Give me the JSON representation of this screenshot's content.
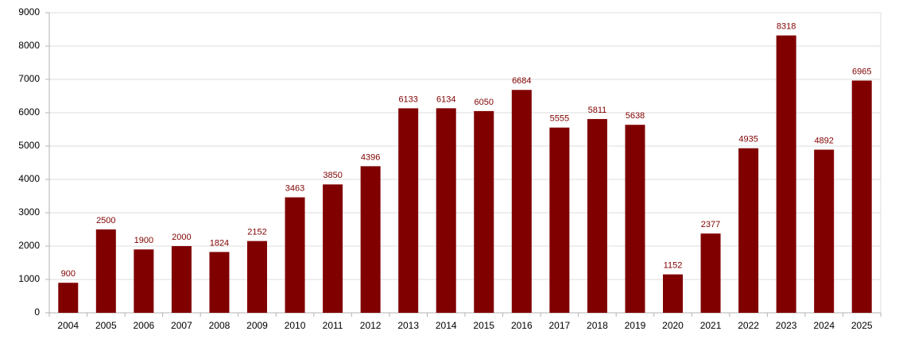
{
  "chart_data": {
    "type": "bar",
    "categories": [
      "2004",
      "2005",
      "2006",
      "2007",
      "2008",
      "2009",
      "2010",
      "2011",
      "2012",
      "2013",
      "2014",
      "2015",
      "2016",
      "2017",
      "2018",
      "2019",
      "2020",
      "2021",
      "2022",
      "2023",
      "2024",
      "2025"
    ],
    "values": [
      900,
      2500,
      1900,
      2000,
      1824,
      2152,
      3463,
      3850,
      4396,
      6133,
      6134,
      6050,
      6684,
      5555,
      5811,
      5638,
      1152,
      2377,
      4935,
      8318,
      4892,
      6965
    ],
    "color": "#800000",
    "ylim": [
      0,
      9000
    ],
    "yticks": [
      0,
      1000,
      2000,
      3000,
      4000,
      5000,
      6000,
      7000,
      8000,
      9000
    ],
    "grid": true
  }
}
